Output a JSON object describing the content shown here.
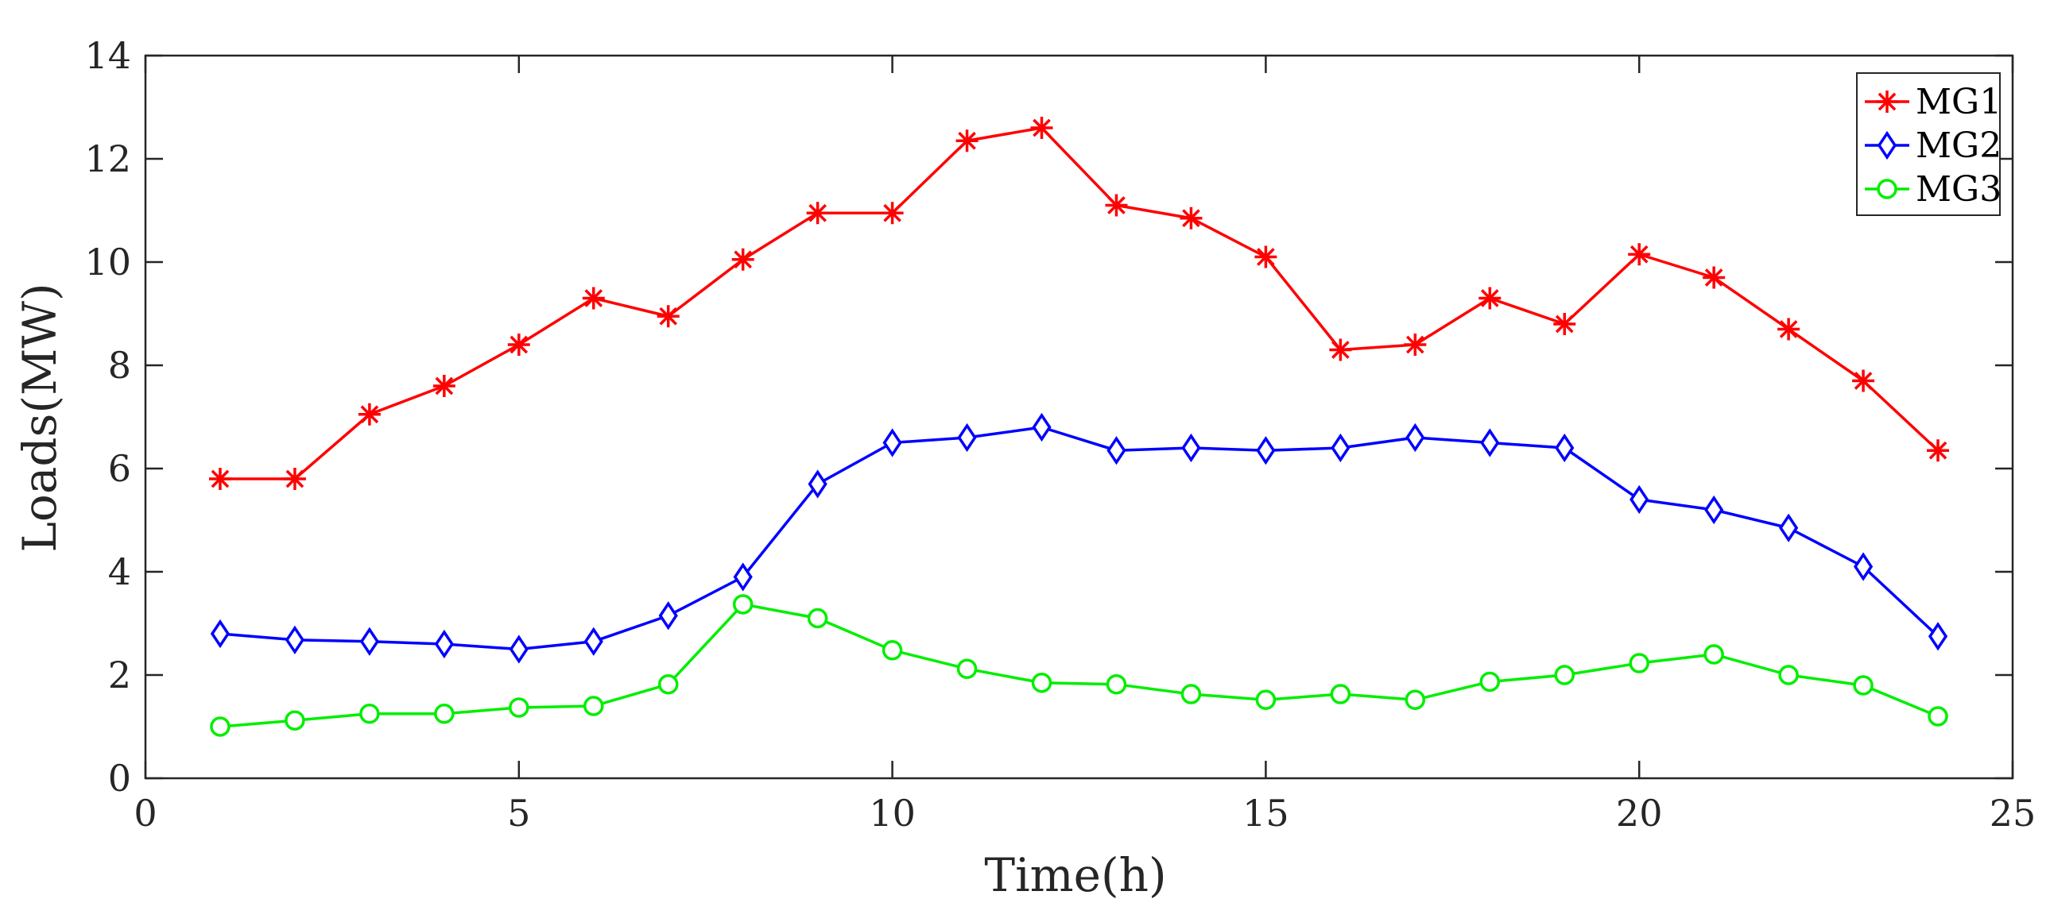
{
  "chart_data": {
    "type": "line",
    "title": "",
    "xlabel": "Time(h)",
    "ylabel": "Loads(MW)",
    "xlim": [
      0,
      25
    ],
    "ylim": [
      0,
      14
    ],
    "xticks": [
      0,
      5,
      10,
      15,
      20,
      25
    ],
    "yticks": [
      0,
      2,
      4,
      6,
      8,
      10,
      12,
      14
    ],
    "grid": false,
    "legend_position": "top-right",
    "x": [
      1,
      2,
      3,
      4,
      5,
      6,
      7,
      8,
      9,
      10,
      11,
      12,
      13,
      14,
      15,
      16,
      17,
      18,
      19,
      20,
      21,
      22,
      23,
      24
    ],
    "series": [
      {
        "name": "MG1",
        "color": "#ff0000",
        "marker": "asterisk",
        "values": [
          5.8,
          5.8,
          7.05,
          7.6,
          8.4,
          9.3,
          8.95,
          10.05,
          10.95,
          10.95,
          12.35,
          12.6,
          11.1,
          10.85,
          10.1,
          8.3,
          8.4,
          9.3,
          8.8,
          10.15,
          9.7,
          8.7,
          7.7,
          6.35
        ]
      },
      {
        "name": "MG2",
        "color": "#0000ff",
        "marker": "diamond",
        "values": [
          2.8,
          2.68,
          2.65,
          2.6,
          2.5,
          2.65,
          3.15,
          3.9,
          5.7,
          6.5,
          6.6,
          6.8,
          6.35,
          6.4,
          6.35,
          6.4,
          6.6,
          6.5,
          6.4,
          5.4,
          5.2,
          4.85,
          4.1,
          2.75
        ]
      },
      {
        "name": "MG3",
        "color": "#00ee00",
        "marker": "circle",
        "values": [
          1.0,
          1.12,
          1.25,
          1.25,
          1.37,
          1.4,
          1.82,
          3.37,
          3.1,
          2.48,
          2.12,
          1.85,
          1.82,
          1.63,
          1.52,
          1.63,
          1.52,
          1.87,
          2.0,
          2.23,
          2.4,
          2.0,
          1.8,
          1.2
        ]
      }
    ]
  }
}
